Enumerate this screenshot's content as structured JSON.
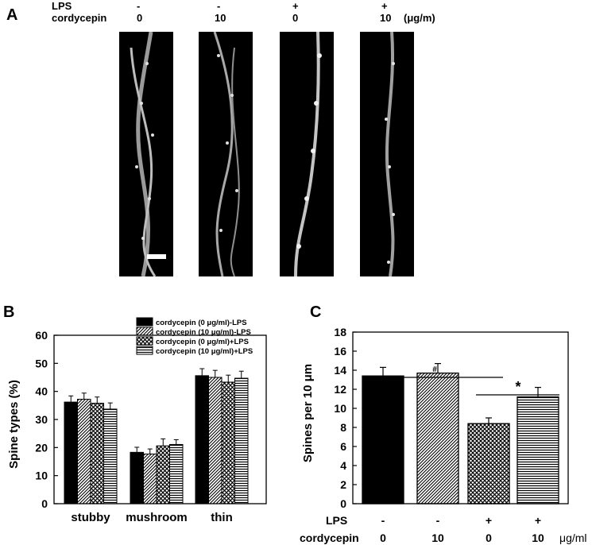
{
  "panel_a": {
    "label": "A",
    "row_labels": [
      "LPS",
      "cordycepin"
    ],
    "columns": [
      {
        "lps": "-",
        "cordycepin": "0"
      },
      {
        "lps": "-",
        "cordycepin": "10"
      },
      {
        "lps": "+",
        "cordycepin": "0"
      },
      {
        "lps": "+",
        "cordycepin": "10"
      }
    ],
    "unit": "(μg/m)"
  },
  "chart_data": [
    {
      "panel": "B",
      "type": "bar",
      "ylabel": "Spine types (%)",
      "xlabel": "",
      "ylim": [
        0,
        60
      ],
      "yticks": [
        "0",
        "10",
        "20",
        "30",
        "40",
        "50",
        "60"
      ],
      "categories": [
        "stubby",
        "mushroom",
        "thin"
      ],
      "series": [
        {
          "name": "cordycepin (0 μg/ml)-LPS",
          "pattern": "solid",
          "values": [
            36.2,
            18.3,
            45.6
          ],
          "errors": [
            2.2,
            1.8,
            2.5
          ]
        },
        {
          "name": "cordycepin (10 μg/ml)-LPS",
          "pattern": "diagonal",
          "values": [
            37.2,
            17.7,
            45.0
          ],
          "errors": [
            2.2,
            1.8,
            2.5
          ]
        },
        {
          "name": "cordycepin (0 μg/ml)+LPS",
          "pattern": "crosshatch",
          "values": [
            35.8,
            20.6,
            43.3
          ],
          "errors": [
            2.2,
            2.5,
            2.5
          ]
        },
        {
          "name": "cordycepin (10 μg/ml)+LPS",
          "pattern": "horizontal",
          "values": [
            33.7,
            21.1,
            44.7
          ],
          "errors": [
            2.2,
            1.7,
            2.5
          ]
        }
      ],
      "legend_position": "top-right"
    },
    {
      "panel": "C",
      "type": "bar",
      "ylabel": "Spines per 10 μm",
      "xlabel": "",
      "ylim": [
        0,
        18
      ],
      "yticks": [
        "0",
        "2",
        "4",
        "6",
        "8",
        "10",
        "12",
        "14",
        "16",
        "18"
      ],
      "bars": [
        {
          "lps": "-",
          "cordycepin": "0",
          "value": 13.4,
          "error": 0.9,
          "pattern": "solid"
        },
        {
          "lps": "-",
          "cordycepin": "10",
          "value": 13.7,
          "error": 1.0,
          "pattern": "diagonal"
        },
        {
          "lps": "+",
          "cordycepin": "0",
          "value": 8.4,
          "error": 0.6,
          "pattern": "crosshatch"
        },
        {
          "lps": "+",
          "cordycepin": "10",
          "value": 11.2,
          "error": 1.0,
          "pattern": "horizontal"
        }
      ],
      "row_labels": [
        "LPS",
        "cordycepin"
      ],
      "unit": "μg/ml",
      "annotations": [
        "#",
        "*"
      ]
    }
  ]
}
